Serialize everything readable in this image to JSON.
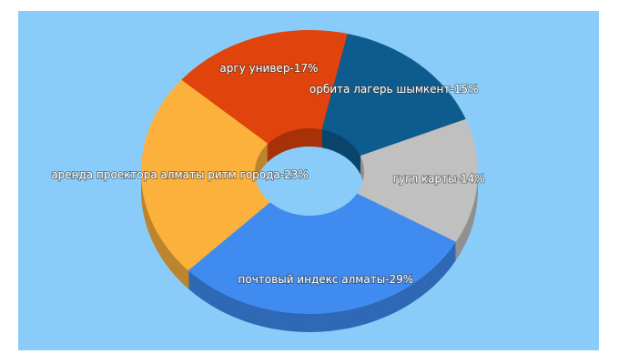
{
  "chart_data": {
    "type": "pie",
    "values": [
      15,
      14,
      29,
      23,
      17
    ],
    "value_labels": [
      "орбита лагерь шымкент-15%",
      "гугл карты-14%",
      "почтовый индекс алматы-29%",
      "аренда проектора алматы ритм города-23%",
      "аргу универ-17%"
    ],
    "colors": [
      "#0e5c8e",
      "#c0c0c0",
      "#3f8bf0",
      "#fbb13c",
      "#e0430b"
    ]
  }
}
